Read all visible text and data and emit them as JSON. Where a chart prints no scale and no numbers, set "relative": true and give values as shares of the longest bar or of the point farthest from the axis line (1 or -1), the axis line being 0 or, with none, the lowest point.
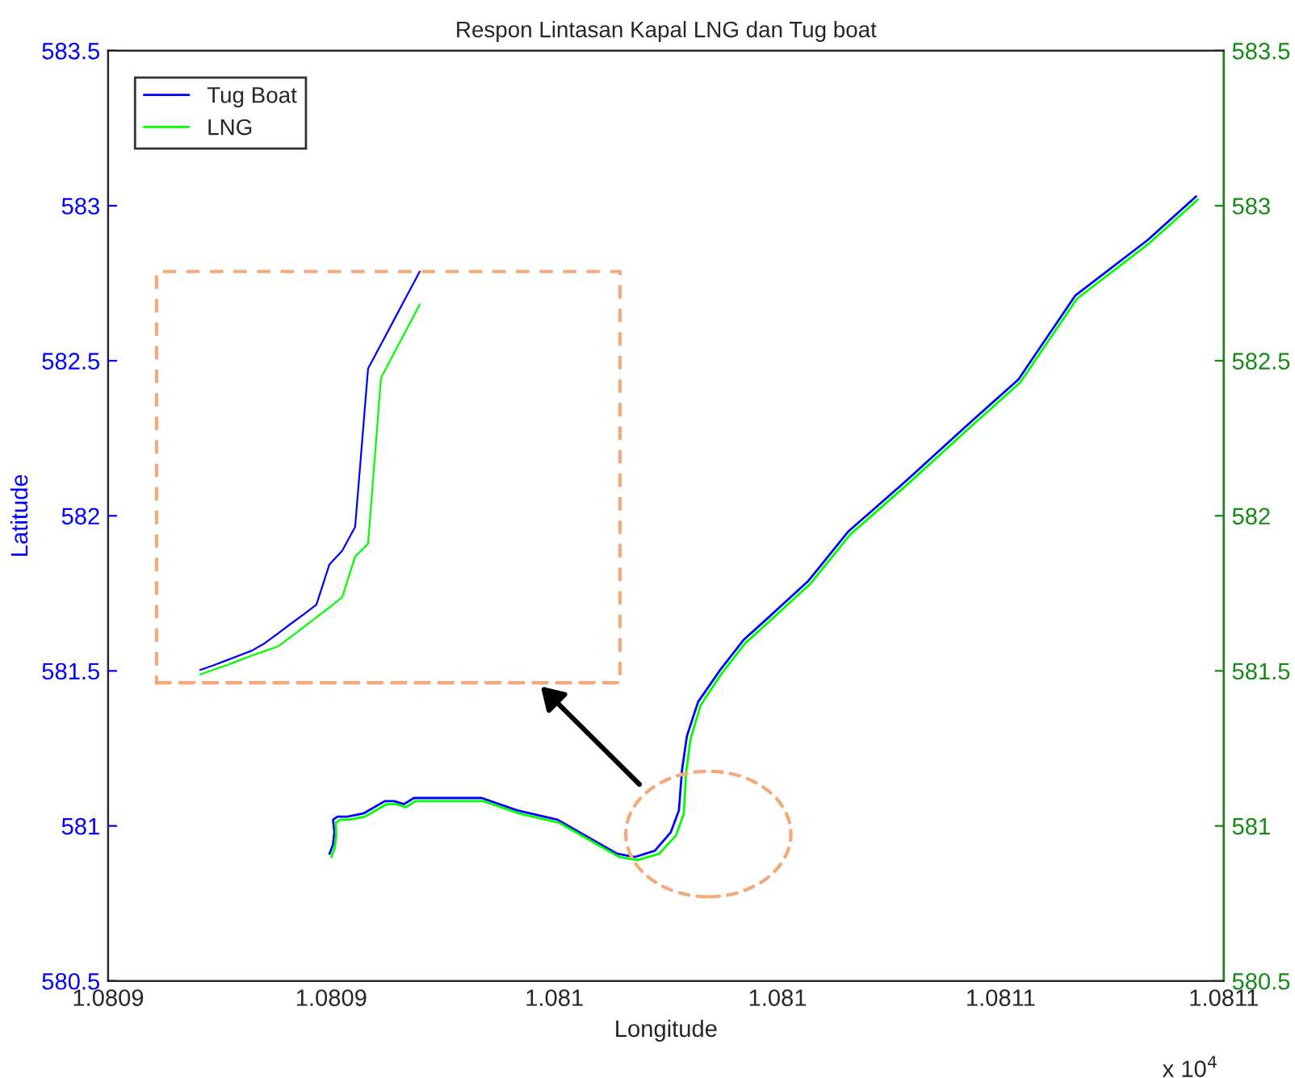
{
  "chart_data": [
    {
      "type": "line",
      "title": "Respon Lintasan Kapal LNG dan Tug boat",
      "xlabel": "Longitude",
      "ylabel": "Latitude",
      "xlim": [
        1.08085,
        1.0811
      ],
      "xticks": [
        {
          "value": 1.08085,
          "label": "1.0809"
        },
        {
          "value": 1.0809,
          "label": "1.0809"
        },
        {
          "value": 1.08095,
          "label": "1.081"
        },
        {
          "value": 1.081,
          "label": "1.081"
        },
        {
          "value": 1.08105,
          "label": "1.0811"
        },
        {
          "value": 1.0811,
          "label": "1.0811"
        }
      ],
      "ylim": [
        580.5,
        583.5
      ],
      "yticks": [
        580.5,
        581,
        581.5,
        582,
        582.5,
        583,
        583.5
      ],
      "y2lim": [
        580.5,
        583.5
      ],
      "y2ticks": [
        580.5,
        581,
        581.5,
        582,
        582.5,
        583,
        583.5
      ],
      "annotations": [
        "x 10$^{4}$"
      ],
      "legend": "top left",
      "series": [
        {
          "name": "Tug Boat",
          "color": "#0000ff",
          "x": [
            1.0808996,
            1.0809004,
            1.0809007,
            1.0809004,
            1.0809014,
            1.0809036,
            1.0809072,
            1.080912,
            1.0809141,
            1.0809163,
            1.0809185,
            1.0809254,
            1.0809337,
            1.0809417,
            1.0809507,
            1.080958,
            1.0809641,
            1.0809681,
            1.0809725,
            1.0809761,
            1.0809779,
            1.0809786,
            1.0809797,
            1.0809822,
            1.080987,
            1.0809924,
            1.0809978,
            1.0810069,
            1.0810159,
            1.0810286,
            1.0810431,
            1.081054,
            1.0810667,
            1.081083,
            1.0810938
          ],
          "values": [
            580.91,
            580.94,
            580.98,
            581.02,
            581.03,
            581.03,
            581.04,
            581.08,
            581.08,
            581.07,
            581.09,
            581.09,
            581.09,
            581.05,
            581.02,
            580.96,
            580.91,
            580.9,
            580.92,
            580.98,
            581.05,
            581.18,
            581.29,
            581.4,
            581.5,
            581.6,
            581.67,
            581.79,
            581.95,
            582.11,
            582.3,
            582.44,
            582.71,
            582.89,
            583.03
          ]
        },
        {
          "name": "LNG",
          "color": "#00ff00",
          "x": [
            1.0809,
            1.0809008,
            1.0809011,
            1.080901,
            1.080902,
            1.080904,
            1.0809076,
            1.0809124,
            1.0809145,
            1.0809167,
            1.0809189,
            1.0809258,
            1.0809341,
            1.0809421,
            1.0809511,
            1.0809584,
            1.0809645,
            1.0809687,
            1.0809735,
            1.0809773,
            1.080979,
            1.0809795,
            1.0809805,
            1.0809828,
            1.0809874,
            1.0809928,
            1.0809982,
            1.0810073,
            1.0810163,
            1.081029,
            1.0810435,
            1.0810544,
            1.0810671,
            1.0810834,
            1.0810942
          ],
          "values": [
            580.9,
            580.93,
            580.97,
            581.01,
            581.02,
            581.02,
            581.03,
            581.07,
            581.07,
            581.06,
            581.08,
            581.08,
            581.08,
            581.04,
            581.01,
            580.95,
            580.9,
            580.89,
            580.91,
            580.97,
            581.04,
            581.17,
            581.28,
            581.39,
            581.49,
            581.59,
            581.66,
            581.78,
            581.94,
            582.1,
            582.29,
            582.43,
            582.7,
            582.88,
            583.02
          ]
        }
      ]
    },
    {
      "type": "line",
      "relative": true,
      "categories": [
        null,
        null,
        null,
        null,
        null,
        null,
        null,
        null,
        null,
        null,
        null,
        null,
        null,
        null,
        null,
        null,
        null,
        null
      ],
      "series": [
        {
          "color": "#0000ff",
          "values": [
            0.031,
            0.042,
            0.054,
            0.066,
            0.078,
            0.096,
            0.119,
            0.143,
            0.166,
            0.19,
            0.287,
            0.321,
            0.379,
            0.764,
            0.823,
            0.882,
            0.941,
            1.0
          ]
        },
        {
          "color": "#00ff00",
          "values": [
            0.02,
            0.031,
            0.042,
            0.054,
            0.066,
            0.077,
            0.088,
            0.111,
            0.135,
            0.159,
            0.183,
            0.208,
            0.307,
            0.338,
            0.741,
            0.801,
            0.86,
            0.92
          ]
        }
      ]
    }
  ]
}
